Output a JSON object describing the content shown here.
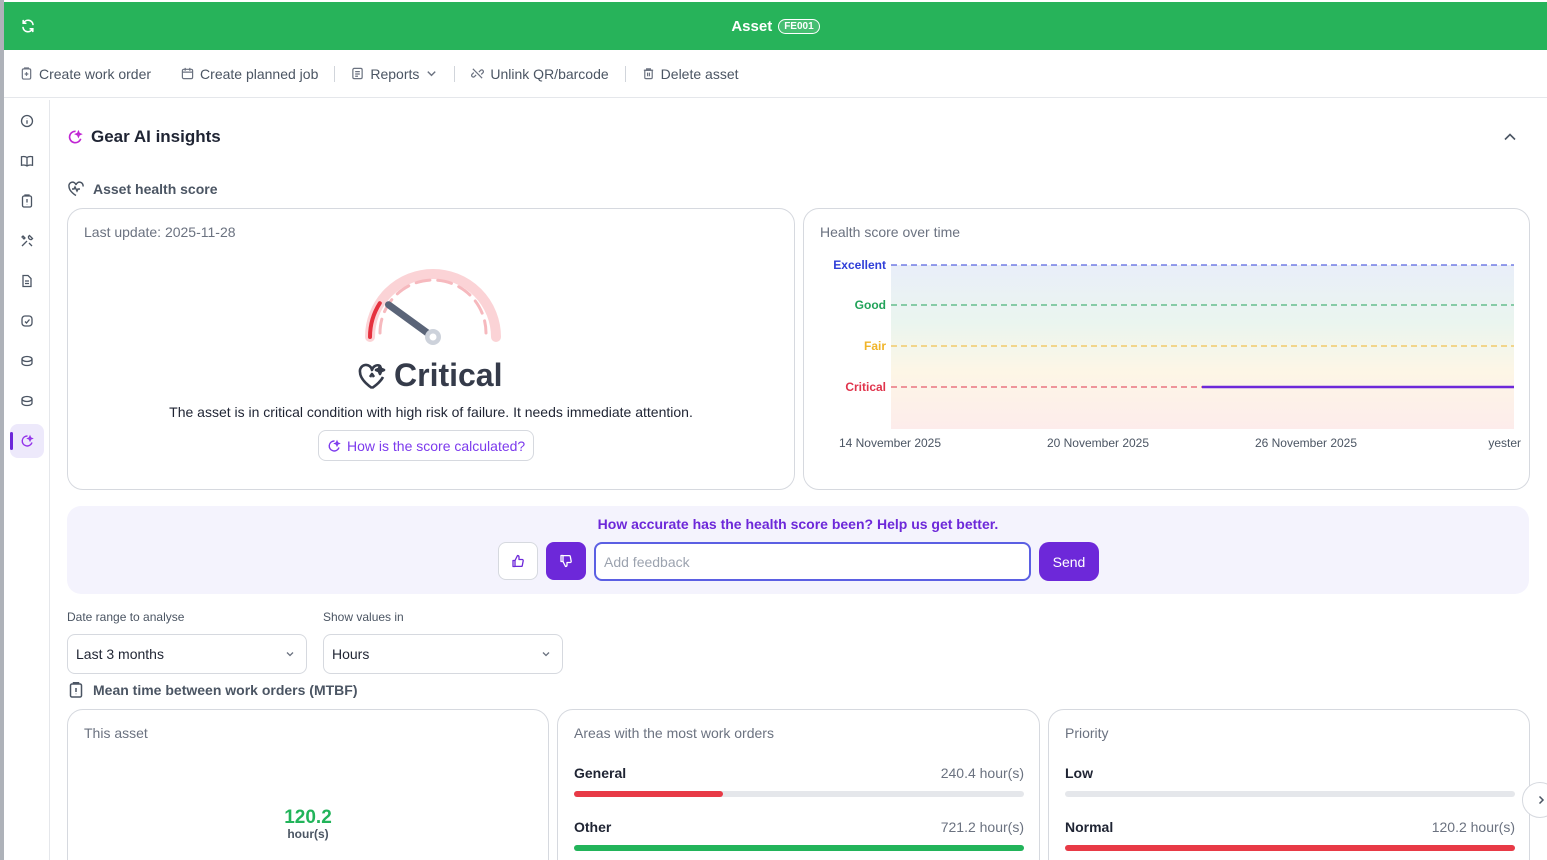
{
  "header": {
    "title": "Asset",
    "asset_code": "FE001"
  },
  "toolbar": {
    "create_work_order": "Create work order",
    "create_planned_job": "Create planned job",
    "reports": "Reports",
    "unlink_qr": "Unlink QR/barcode",
    "delete_asset": "Delete asset"
  },
  "section": {
    "title": "Gear AI insights"
  },
  "health": {
    "subtitle": "Asset health score",
    "last_update": "Last update: 2025-11-28",
    "status": "Critical",
    "description": "The asset is in critical condition with high risk of failure. It needs immediate attention.",
    "how_calculated": "How is the score calculated?",
    "gauge_level": 0.18
  },
  "health_chart": {
    "title": "Health score over time",
    "chart_data": {
      "type": "line",
      "y_levels": [
        "Critical",
        "Fair",
        "Good",
        "Excellent"
      ],
      "x_ticks": [
        "14 November 2025",
        "20 November 2025",
        "26 November 2025",
        "yester"
      ],
      "series": [
        {
          "values": [
            {
              "x": "2025-11-23",
              "y": "Critical"
            },
            {
              "x": "yester",
              "y": "Critical"
            }
          ]
        }
      ],
      "level_colors": {
        "Excellent": "#2f3ed8",
        "Good": "#22a35a",
        "Fair": "#f0b429",
        "Critical": "#e0344c"
      },
      "line_color": "#6d28d9"
    }
  },
  "feedback": {
    "question": "How accurate has the health score been? Help us get better.",
    "placeholder": "Add feedback",
    "send": "Send"
  },
  "filters": {
    "date_range_label": "Date range to analyse",
    "date_range_value": "Last 3 months",
    "show_values_label": "Show values in",
    "show_values_value": "Hours"
  },
  "mtbf": {
    "title": "Mean time between work orders (MTBF)",
    "this_asset": {
      "label": "This asset",
      "value": "120.2",
      "unit": "hour(s)"
    },
    "areas": {
      "label": "Areas with the most work orders",
      "items": [
        {
          "name": "General",
          "value": "240.4 hour(s)",
          "fraction": 0.33,
          "color": "#e83a46"
        },
        {
          "name": "Other",
          "value": "721.2 hour(s)",
          "fraction": 1.0,
          "color": "#22b45a"
        }
      ]
    },
    "priority": {
      "label": "Priority",
      "items": [
        {
          "name": "Low",
          "value": "",
          "fraction": 0,
          "color": "#e83a46"
        },
        {
          "name": "Normal",
          "value": "120.2 hour(s)",
          "fraction": 1.0,
          "color": "#e83a46"
        }
      ]
    }
  },
  "colors": {
    "brand_green": "#27b35a",
    "accent_purple": "#6d28d9"
  }
}
